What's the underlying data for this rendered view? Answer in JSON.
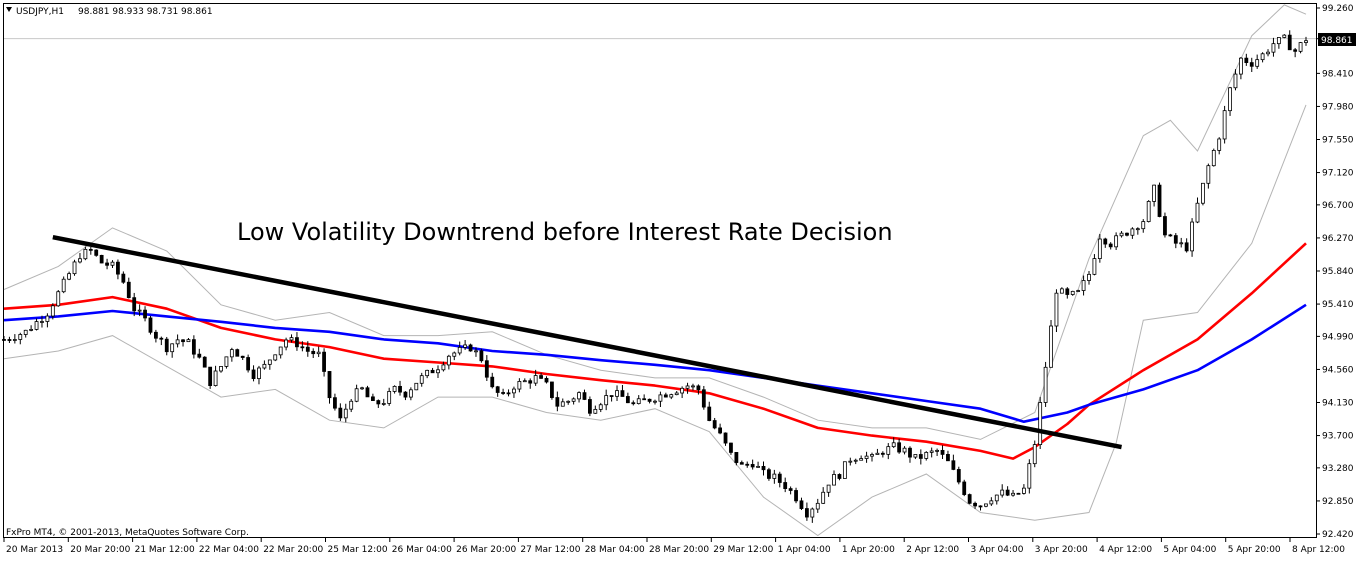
{
  "window": {
    "symbol_label": "USDJPY,H1",
    "ohlc_label": "98.881 98.933 98.731 98.861",
    "copyright": "FxPro MT4, © 2001-2013, MetaQuotes Software Corp.",
    "current_price_label": "98.861"
  },
  "chart_data": {
    "type": "candlestick",
    "title": "",
    "annotation": "Low Volatility Downtrend before Interest Rate Decision",
    "y_ticks": [
      "99.260",
      "98.861",
      "98.410",
      "97.980",
      "97.550",
      "97.120",
      "96.700",
      "96.270",
      "95.840",
      "95.410",
      "94.990",
      "94.560",
      "94.130",
      "93.700",
      "93.280",
      "92.850",
      "92.420"
    ],
    "ylim": [
      92.42,
      99.26
    ],
    "current_price": 98.861,
    "x_ticks": [
      "20 Mar 2013",
      "20 Mar 20:00",
      "21 Mar 12:00",
      "22 Mar 04:00",
      "22 Mar 20:00",
      "25 Mar 12:00",
      "26 Mar 04:00",
      "26 Mar 20:00",
      "27 Mar 12:00",
      "28 Mar 04:00",
      "28 Mar 20:00",
      "29 Mar 12:00",
      "1 Apr 04:00",
      "1 Apr 20:00",
      "2 Apr 12:00",
      "3 Apr 04:00",
      "3 Apr 20:00",
      "4 Apr 12:00",
      "5 Apr 04:00",
      "5 Apr 20:00",
      "8 Apr 12:00"
    ],
    "close_path": [
      [
        0,
        94.95
      ],
      [
        4,
        95.05
      ],
      [
        8,
        95.3
      ],
      [
        10,
        95.55
      ],
      [
        12,
        95.8
      ],
      [
        14,
        96.05
      ],
      [
        16,
        96.1
      ],
      [
        18,
        95.95
      ],
      [
        20,
        95.9
      ],
      [
        22,
        95.7
      ],
      [
        24,
        95.35
      ],
      [
        26,
        95.2
      ],
      [
        28,
        95.0
      ],
      [
        30,
        94.85
      ],
      [
        32,
        94.95
      ],
      [
        34,
        94.9
      ],
      [
        36,
        94.7
      ],
      [
        38,
        94.4
      ],
      [
        40,
        94.6
      ],
      [
        42,
        94.85
      ],
      [
        44,
        94.7
      ],
      [
        46,
        94.5
      ],
      [
        48,
        94.6
      ],
      [
        50,
        94.8
      ],
      [
        52,
        94.95
      ],
      [
        54,
        94.9
      ],
      [
        56,
        94.8
      ],
      [
        58,
        94.75
      ],
      [
        60,
        94.2
      ],
      [
        62,
        93.9
      ],
      [
        64,
        94.2
      ],
      [
        66,
        94.3
      ],
      [
        68,
        94.1
      ],
      [
        70,
        94.15
      ],
      [
        72,
        94.3
      ],
      [
        74,
        94.25
      ],
      [
        76,
        94.4
      ],
      [
        78,
        94.5
      ],
      [
        80,
        94.6
      ],
      [
        82,
        94.75
      ],
      [
        84,
        94.8
      ],
      [
        86,
        94.85
      ],
      [
        88,
        94.7
      ],
      [
        90,
        94.3
      ],
      [
        92,
        94.2
      ],
      [
        94,
        94.35
      ],
      [
        96,
        94.4
      ],
      [
        98,
        94.45
      ],
      [
        100,
        94.35
      ],
      [
        102,
        94.1
      ],
      [
        104,
        94.15
      ],
      [
        106,
        94.25
      ],
      [
        108,
        94.05
      ],
      [
        110,
        94.15
      ],
      [
        112,
        94.25
      ],
      [
        114,
        94.2
      ],
      [
        116,
        94.1
      ],
      [
        118,
        94.15
      ],
      [
        120,
        94.2
      ],
      [
        122,
        94.25
      ],
      [
        124,
        94.3
      ],
      [
        126,
        94.35
      ],
      [
        128,
        94.3
      ],
      [
        130,
        93.9
      ],
      [
        132,
        93.7
      ],
      [
        134,
        93.45
      ],
      [
        136,
        93.3
      ],
      [
        138,
        93.35
      ],
      [
        140,
        93.2
      ],
      [
        142,
        93.15
      ],
      [
        144,
        93.05
      ],
      [
        146,
        92.9
      ],
      [
        148,
        92.7
      ],
      [
        150,
        92.85
      ],
      [
        152,
        93.1
      ],
      [
        154,
        93.2
      ],
      [
        156,
        93.4
      ],
      [
        158,
        93.45
      ],
      [
        160,
        93.4
      ],
      [
        162,
        93.5
      ],
      [
        164,
        93.55
      ],
      [
        166,
        93.5
      ],
      [
        168,
        93.4
      ],
      [
        170,
        93.45
      ],
      [
        172,
        93.5
      ],
      [
        174,
        93.35
      ],
      [
        176,
        93.1
      ],
      [
        178,
        92.85
      ],
      [
        180,
        92.8
      ],
      [
        182,
        92.9
      ],
      [
        184,
        92.95
      ],
      [
        186,
        92.9
      ],
      [
        188,
        93.0
      ],
      [
        190,
        93.6
      ],
      [
        192,
        94.6
      ],
      [
        194,
        95.6
      ],
      [
        196,
        95.5
      ],
      [
        198,
        95.55
      ],
      [
        200,
        95.8
      ],
      [
        202,
        96.3
      ],
      [
        204,
        96.2
      ],
      [
        206,
        96.3
      ],
      [
        208,
        96.4
      ],
      [
        210,
        96.5
      ],
      [
        212,
        96.9
      ],
      [
        214,
        96.3
      ],
      [
        216,
        96.2
      ],
      [
        218,
        96.15
      ],
      [
        220,
        96.7
      ],
      [
        222,
        97.2
      ],
      [
        224,
        97.6
      ],
      [
        226,
        98.2
      ],
      [
        228,
        98.6
      ],
      [
        230,
        98.55
      ],
      [
        232,
        98.65
      ],
      [
        234,
        98.8
      ],
      [
        236,
        98.85
      ],
      [
        238,
        98.7
      ],
      [
        240,
        98.86
      ]
    ],
    "series": [
      {
        "name": "",
        "color": "#ff0000",
        "values": [
          [
            0,
            95.35
          ],
          [
            10,
            95.4
          ],
          [
            20,
            95.5
          ],
          [
            30,
            95.35
          ],
          [
            40,
            95.1
          ],
          [
            50,
            94.95
          ],
          [
            60,
            94.85
          ],
          [
            70,
            94.7
          ],
          [
            80,
            94.65
          ],
          [
            90,
            94.6
          ],
          [
            100,
            94.5
          ],
          [
            110,
            94.42
          ],
          [
            120,
            94.35
          ],
          [
            130,
            94.25
          ],
          [
            140,
            94.05
          ],
          [
            150,
            93.8
          ],
          [
            160,
            93.7
          ],
          [
            170,
            93.62
          ],
          [
            180,
            93.5
          ],
          [
            186,
            93.4
          ],
          [
            190,
            93.55
          ],
          [
            196,
            93.85
          ],
          [
            200,
            94.1
          ],
          [
            210,
            94.55
          ],
          [
            220,
            94.95
          ],
          [
            230,
            95.55
          ],
          [
            240,
            96.2
          ]
        ]
      },
      {
        "name": "",
        "color": "#0000ff",
        "values": [
          [
            0,
            95.2
          ],
          [
            10,
            95.25
          ],
          [
            20,
            95.32
          ],
          [
            30,
            95.25
          ],
          [
            40,
            95.18
          ],
          [
            50,
            95.1
          ],
          [
            60,
            95.05
          ],
          [
            70,
            94.95
          ],
          [
            80,
            94.9
          ],
          [
            90,
            94.8
          ],
          [
            100,
            94.75
          ],
          [
            110,
            94.68
          ],
          [
            120,
            94.62
          ],
          [
            130,
            94.55
          ],
          [
            140,
            94.45
          ],
          [
            150,
            94.35
          ],
          [
            160,
            94.25
          ],
          [
            170,
            94.15
          ],
          [
            180,
            94.05
          ],
          [
            188,
            93.88
          ],
          [
            196,
            94.0
          ],
          [
            200,
            94.1
          ],
          [
            210,
            94.3
          ],
          [
            220,
            94.55
          ],
          [
            230,
            94.95
          ],
          [
            240,
            95.4
          ]
        ]
      }
    ],
    "bands": {
      "upper": [
        [
          0,
          95.6
        ],
        [
          10,
          95.9
        ],
        [
          20,
          96.4
        ],
        [
          30,
          96.1
        ],
        [
          40,
          95.4
        ],
        [
          50,
          95.2
        ],
        [
          60,
          95.3
        ],
        [
          70,
          95.0
        ],
        [
          80,
          95.0
        ],
        [
          90,
          95.05
        ],
        [
          100,
          94.75
        ],
        [
          110,
          94.55
        ],
        [
          120,
          94.45
        ],
        [
          130,
          94.45
        ],
        [
          140,
          94.2
        ],
        [
          150,
          93.9
        ],
        [
          160,
          93.8
        ],
        [
          170,
          93.8
        ],
        [
          180,
          93.65
        ],
        [
          190,
          94.0
        ],
        [
          200,
          96.0
        ],
        [
          210,
          97.6
        ],
        [
          215,
          97.8
        ],
        [
          220,
          97.4
        ],
        [
          230,
          98.9
        ],
        [
          236,
          99.3
        ],
        [
          240,
          99.18
        ]
      ],
      "lower": [
        [
          0,
          94.7
        ],
        [
          10,
          94.8
        ],
        [
          20,
          95.0
        ],
        [
          30,
          94.6
        ],
        [
          40,
          94.2
        ],
        [
          50,
          94.3
        ],
        [
          60,
          93.9
        ],
        [
          70,
          93.8
        ],
        [
          80,
          94.2
        ],
        [
          90,
          94.2
        ],
        [
          100,
          94.0
        ],
        [
          110,
          93.9
        ],
        [
          120,
          94.05
        ],
        [
          130,
          93.75
        ],
        [
          140,
          92.9
        ],
        [
          150,
          92.4
        ],
        [
          160,
          92.9
        ],
        [
          170,
          93.2
        ],
        [
          180,
          92.7
        ],
        [
          190,
          92.6
        ],
        [
          200,
          92.7
        ],
        [
          205,
          93.6
        ],
        [
          210,
          95.2
        ],
        [
          220,
          95.3
        ],
        [
          230,
          96.2
        ],
        [
          240,
          98.0
        ]
      ]
    },
    "trendline": [
      [
        9,
        96.28
      ],
      [
        206,
        93.55
      ]
    ]
  }
}
